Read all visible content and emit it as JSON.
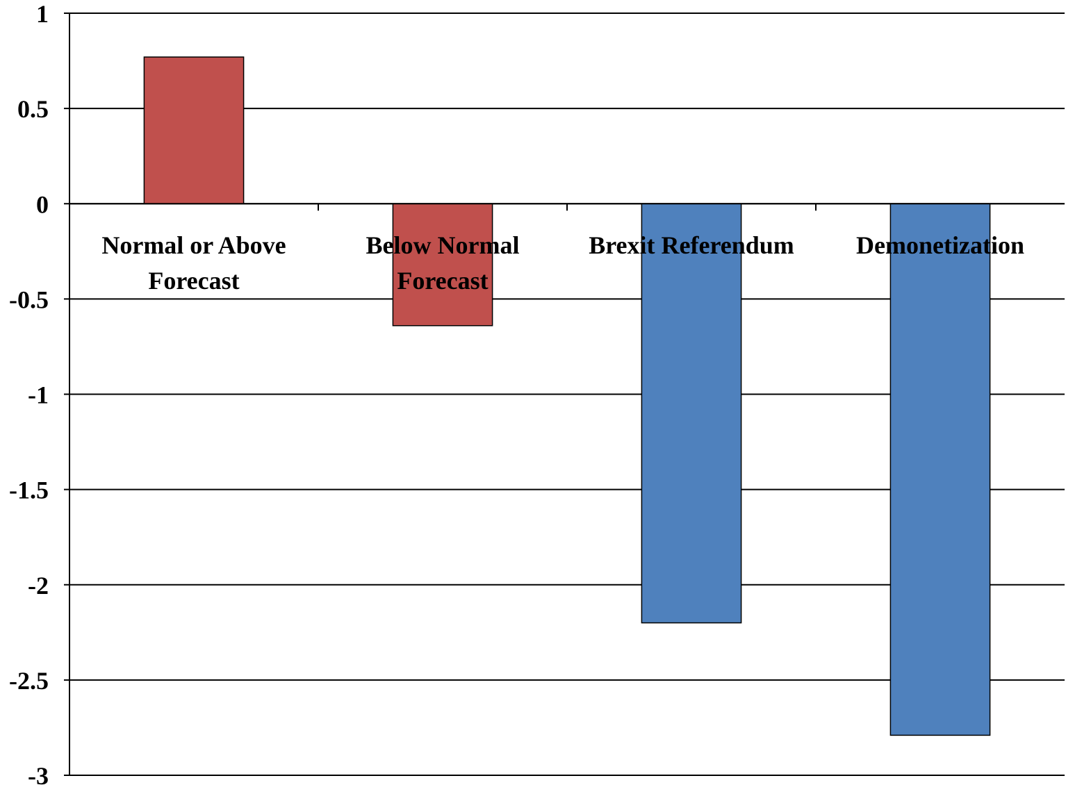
{
  "chart_data": {
    "type": "bar",
    "categories": [
      [
        "Normal or Above",
        "Forecast"
      ],
      [
        "Below Normal",
        "Forecast"
      ],
      [
        "Brexit Referendum"
      ],
      [
        "Demonetization"
      ]
    ],
    "values": [
      0.77,
      -0.64,
      -2.2,
      -2.79
    ],
    "colors": [
      "#c0504d",
      "#c0504d",
      "#4f81bd",
      "#4f81bd"
    ],
    "ylim": [
      -3,
      1
    ],
    "yticks": [
      "1",
      "0.5",
      "0",
      "-0.5",
      "-1",
      "-1.5",
      "-2",
      "-2.5",
      "-3"
    ],
    "title": "",
    "xlabel": "",
    "ylabel": "",
    "grid": true,
    "legend": "none"
  }
}
